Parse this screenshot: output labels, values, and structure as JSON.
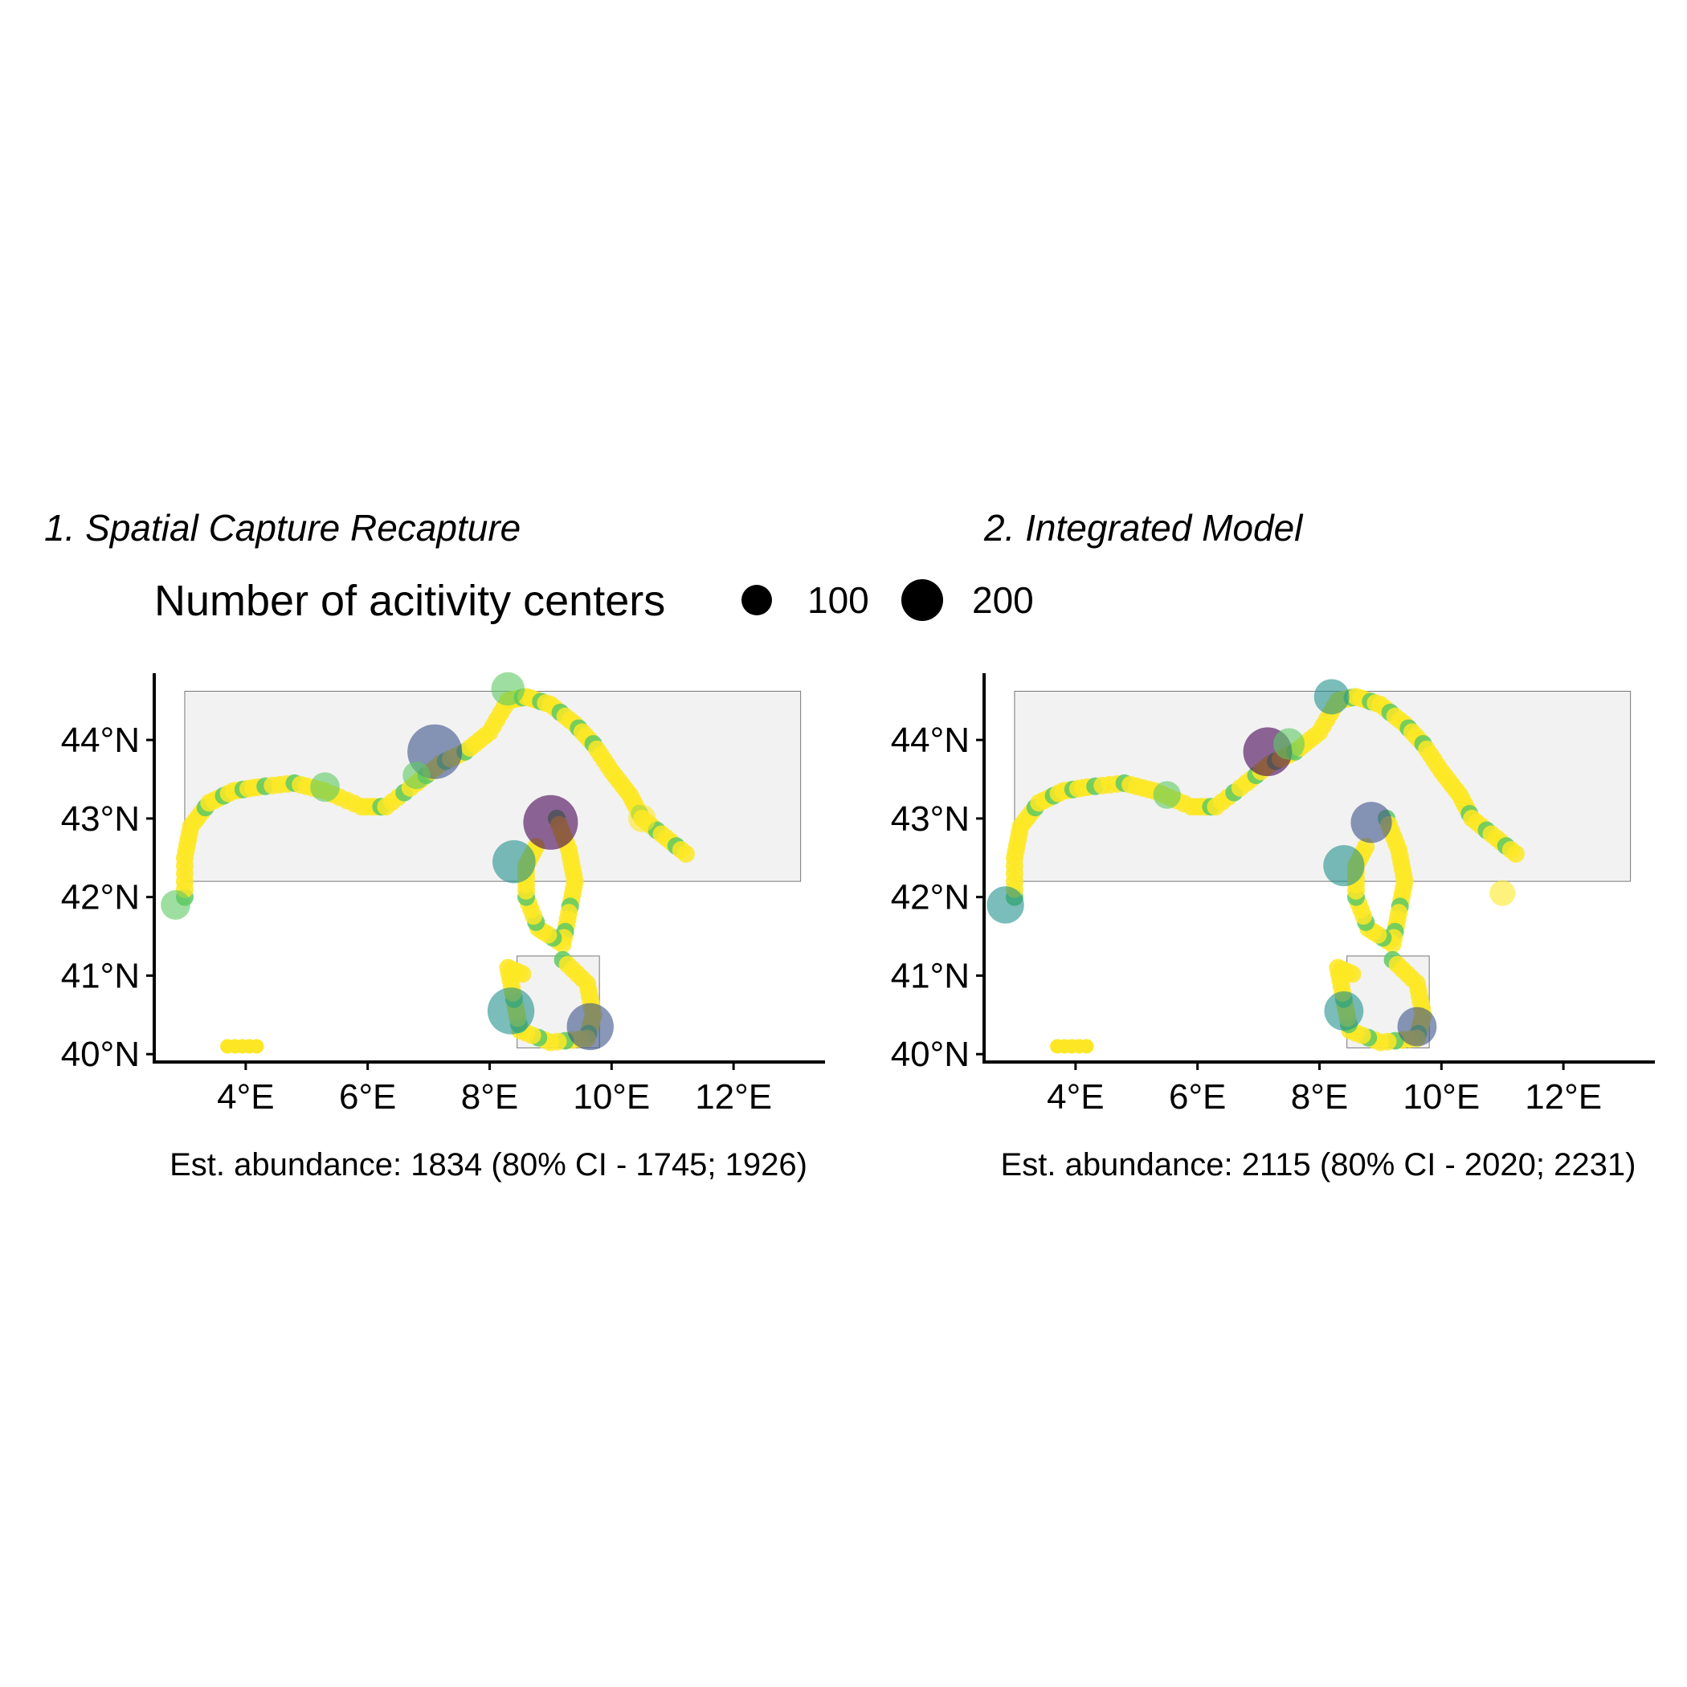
{
  "legend": {
    "title": "Number of acitivity centers",
    "entries": [
      {
        "label": "100",
        "value": 100
      },
      {
        "label": "200",
        "value": 200
      }
    ]
  },
  "palette": {
    "viridis": [
      "#440154",
      "#3b528b",
      "#21918c",
      "#5ec962",
      "#fde725"
    ],
    "land": "#f2f2f2",
    "coast": "#555555"
  },
  "chart_data": [
    {
      "type": "scatter",
      "title": "1. Spatial Capture Recapture",
      "caption": "Est. abundance: 1834 (80% CI - 1745; 1926)",
      "xlim": [
        2.5,
        13.5
      ],
      "ylim": [
        39.9,
        44.85
      ],
      "x_ticks": [
        4,
        6,
        8,
        10,
        12
      ],
      "x_tick_labels": [
        "4°E",
        "6°E",
        "8°E",
        "10°E",
        "12°E"
      ],
      "y_ticks": [
        40,
        41,
        42,
        43,
        44
      ],
      "y_tick_labels": [
        "40°N",
        "41°N",
        "42°N",
        "43°N",
        "44°N"
      ],
      "grid": false,
      "points": [
        {
          "lon": 7.1,
          "lat": 43.85,
          "size": 200,
          "color_index": 1
        },
        {
          "lon": 9.0,
          "lat": 42.95,
          "size": 200,
          "color_index": 0
        },
        {
          "lon": 8.4,
          "lat": 42.45,
          "size": 140,
          "color_index": 2
        },
        {
          "lon": 8.35,
          "lat": 40.55,
          "size": 160,
          "color_index": 2
        },
        {
          "lon": 9.65,
          "lat": 40.35,
          "size": 160,
          "color_index": 1
        },
        {
          "lon": 8.3,
          "lat": 44.65,
          "size": 90,
          "color_index": 3
        },
        {
          "lon": 2.85,
          "lat": 41.9,
          "size": 70,
          "color_index": 3
        },
        {
          "lon": 5.3,
          "lat": 43.4,
          "size": 70,
          "color_index": 3
        },
        {
          "lon": 6.8,
          "lat": 43.55,
          "size": 60,
          "color_index": 3
        },
        {
          "lon": 10.5,
          "lat": 43.0,
          "size": 60,
          "color_index": 4
        }
      ]
    },
    {
      "type": "scatter",
      "title": "2. Integrated Model",
      "caption": "Est. abundance: 2115 (80% CI - 2020; 2231)",
      "xlim": [
        2.5,
        13.5
      ],
      "ylim": [
        39.9,
        44.85
      ],
      "x_ticks": [
        4,
        6,
        8,
        10,
        12
      ],
      "x_tick_labels": [
        "4°E",
        "6°E",
        "8°E",
        "10°E",
        "12°E"
      ],
      "y_ticks": [
        40,
        41,
        42,
        43,
        44
      ],
      "y_tick_labels": [
        "40°N",
        "41°N",
        "42°N",
        "43°N",
        "44°N"
      ],
      "grid": false,
      "points": [
        {
          "lon": 7.15,
          "lat": 43.85,
          "size": 170,
          "color_index": 0
        },
        {
          "lon": 8.85,
          "lat": 42.95,
          "size": 130,
          "color_index": 1
        },
        {
          "lon": 8.4,
          "lat": 42.4,
          "size": 130,
          "color_index": 2
        },
        {
          "lon": 8.4,
          "lat": 40.55,
          "size": 120,
          "color_index": 2
        },
        {
          "lon": 9.6,
          "lat": 40.35,
          "size": 120,
          "color_index": 1
        },
        {
          "lon": 2.85,
          "lat": 41.9,
          "size": 110,
          "color_index": 2
        },
        {
          "lon": 8.2,
          "lat": 44.55,
          "size": 100,
          "color_index": 2
        },
        {
          "lon": 7.5,
          "lat": 43.95,
          "size": 80,
          "color_index": 3
        },
        {
          "lon": 5.5,
          "lat": 43.3,
          "size": 60,
          "color_index": 3
        },
        {
          "lon": 11.0,
          "lat": 42.05,
          "size": 50,
          "color_index": 4
        }
      ]
    }
  ]
}
